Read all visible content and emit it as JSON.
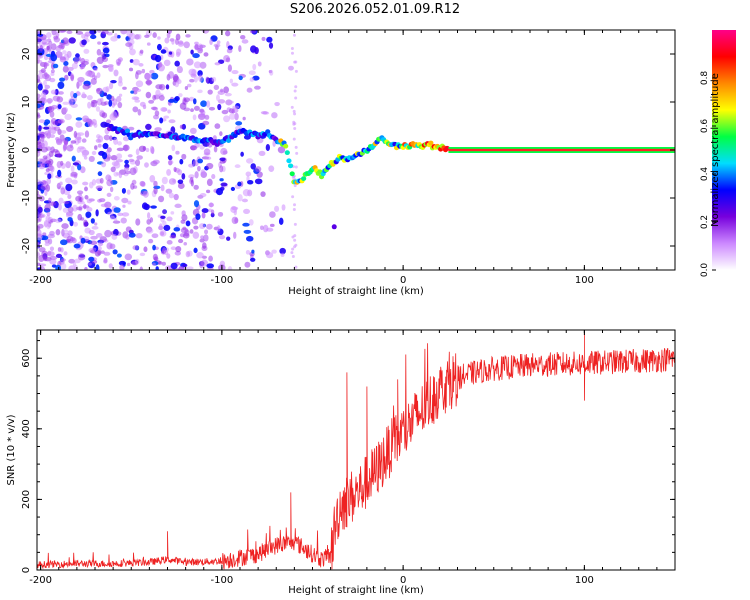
{
  "title": "S206.2026.052.01.09.R12",
  "colors": {
    "snr_line": "#ee2222",
    "scatter": "#7711ee",
    "axis": "#000000"
  },
  "chart_data": [
    {
      "type": "heatmap",
      "name": "spectrogram",
      "xlabel": "Height of straight line (km)",
      "ylabel": "Frequency (Hz)",
      "xlim": [
        -202,
        150
      ],
      "ylim": [
        -25,
        25
      ],
      "x_ticks": [
        -200,
        -100,
        0,
        100
      ],
      "x_tick_labels": [
        "-200",
        "-100",
        "0",
        "100"
      ],
      "y_ticks": [
        -20,
        -10,
        0,
        10,
        20
      ],
      "y_tick_labels": [
        "-20",
        "-10",
        "0",
        "10",
        "20"
      ],
      "colorbar": {
        "label": "Normalized spectral amplitude",
        "range": [
          0,
          1
        ],
        "ticks": [
          0.0,
          0.2,
          0.4,
          0.6,
          0.8
        ],
        "tick_labels": [
          "0.0",
          "0.2",
          "0.4",
          "0.6",
          "0.8"
        ],
        "colormap": [
          "#ffffff",
          "#cc88ff",
          "#7700dd",
          "#0000ff",
          "#00ddff",
          "#00ff44",
          "#ffff00",
          "#ff8800",
          "#ff0000",
          "#ff0088"
        ]
      },
      "ridge": {
        "description": "frequency track (Hz) vs height (km)",
        "x": [
          -160,
          -150,
          -140,
          -130,
          -120,
          -110,
          -100,
          -90,
          -80,
          -75,
          -70,
          -65,
          -60,
          -55,
          -50,
          -45,
          -40,
          -35,
          -30,
          -25,
          -20,
          -15,
          -12,
          -8,
          -5,
          0,
          5,
          10,
          15,
          20,
          25,
          150
        ],
        "y": [
          4.5,
          3.0,
          3.5,
          3.0,
          2.5,
          2.0,
          1.5,
          4.0,
          3.0,
          3.5,
          2.0,
          1.5,
          -7.0,
          -6.0,
          -3.5,
          -5.0,
          -3.0,
          -1.5,
          -2.0,
          -1.0,
          0.0,
          1.0,
          3.0,
          1.0,
          1.0,
          1.0,
          1.0,
          1.0,
          1.0,
          0.5,
          0.0,
          0.0
        ]
      }
    },
    {
      "type": "line",
      "name": "snr",
      "xlabel": "Height of straight line (km)",
      "ylabel": "SNR (10 * v/v)",
      "xlim": [
        -202,
        150
      ],
      "ylim": [
        0,
        680
      ],
      "x_ticks": [
        -200,
        -100,
        0,
        100
      ],
      "x_tick_labels": [
        "-200",
        "-100",
        "0",
        "100"
      ],
      "y_ticks": [
        0,
        200,
        400,
        600
      ],
      "y_tick_labels": [
        "0",
        "200",
        "400",
        "600"
      ],
      "trend": {
        "x": [
          -202,
          -180,
          -160,
          -140,
          -130,
          -120,
          -100,
          -90,
          -80,
          -70,
          -60,
          -50,
          -45,
          -40,
          -38,
          -35,
          -30,
          -25,
          -20,
          -15,
          -10,
          -5,
          0,
          5,
          10,
          15,
          20,
          25,
          30,
          40,
          50,
          60,
          70,
          80,
          90,
          100,
          110,
          120,
          130,
          140,
          150
        ],
        "y": [
          15,
          18,
          18,
          22,
          30,
          22,
          25,
          35,
          45,
          70,
          80,
          45,
          30,
          40,
          110,
          180,
          200,
          220,
          250,
          280,
          320,
          360,
          390,
          420,
          450,
          480,
          510,
          530,
          545,
          560,
          570,
          575,
          580,
          582,
          584,
          585,
          588,
          590,
          592,
          595,
          600
        ]
      },
      "noise_amplitude": [
        {
          "from": -202,
          "to": -100,
          "amp": 20
        },
        {
          "from": -100,
          "to": -40,
          "amp": 50
        },
        {
          "from": -40,
          "to": 30,
          "amp": 160
        },
        {
          "from": 30,
          "to": 150,
          "amp": 70
        }
      ],
      "spikes": [
        {
          "x": -130,
          "y": 110
        },
        {
          "x": -62,
          "y": 220
        },
        {
          "x": -31,
          "y": 560
        },
        {
          "x": -20,
          "y": 520
        },
        {
          "x": -3,
          "y": 540
        },
        {
          "x": 100,
          "y": 680
        },
        {
          "x": 100,
          "y": 480
        }
      ]
    }
  ]
}
